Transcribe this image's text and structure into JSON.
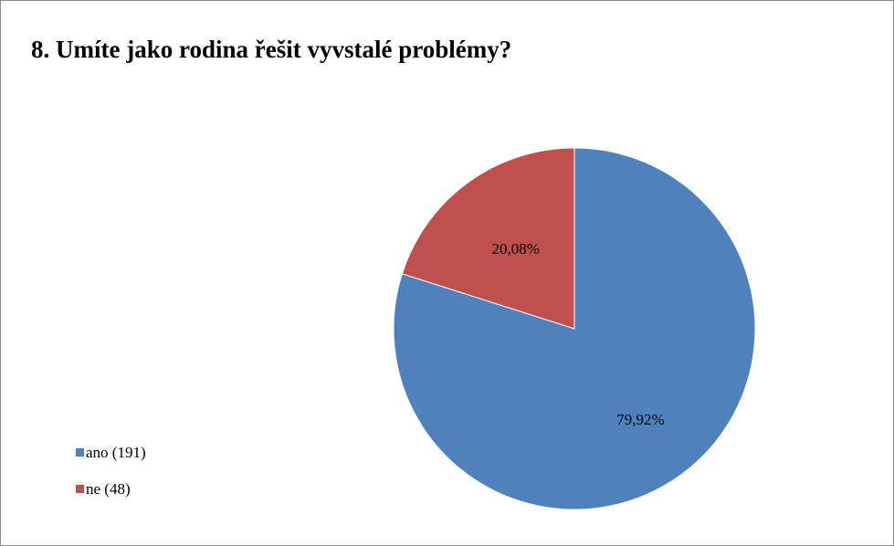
{
  "chart_data": {
    "type": "pie",
    "title": "8. Umíte jako rodina řešit vyvstalé problémy?",
    "slices": [
      {
        "label": "ano (191)",
        "value": 191,
        "percent_label": "79,92%",
        "color": "#4f81bd"
      },
      {
        "label": "ne (48)",
        "value": 48,
        "percent_label": "20,08%",
        "color": "#c0504d"
      }
    ],
    "start_angle_deg": 0,
    "direction": "clockwise",
    "legend_position": "left-bottom"
  }
}
